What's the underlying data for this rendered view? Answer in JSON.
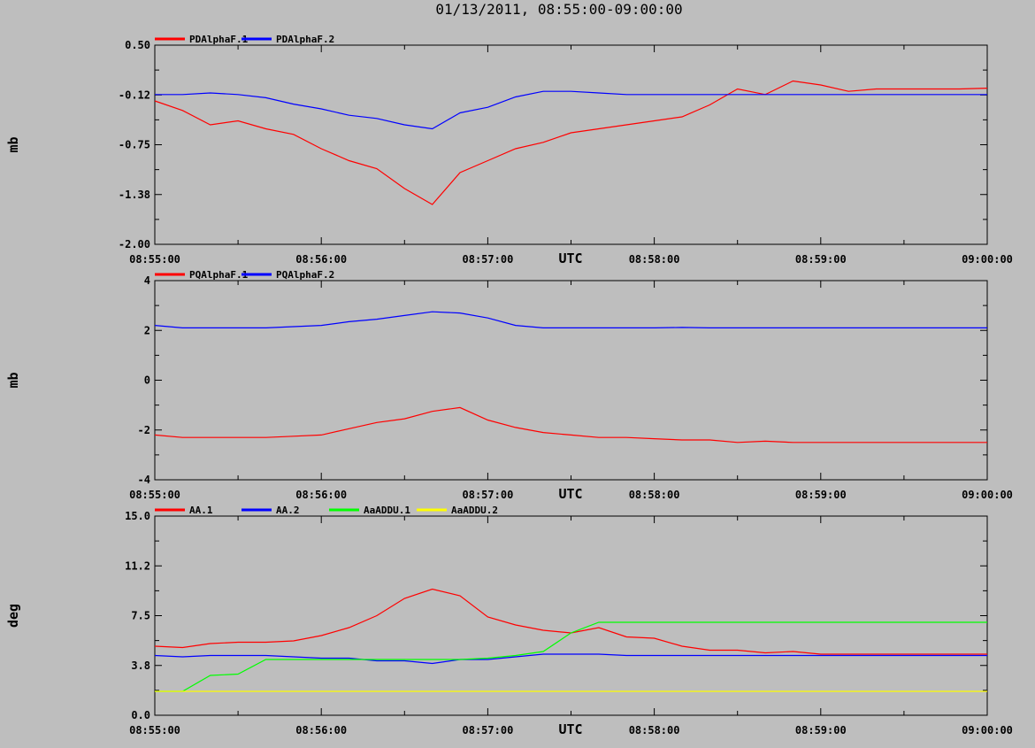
{
  "title": "01/13/2011, 08:55:00-09:00:00",
  "x_ticks": [
    "08:55:00",
    "08:56:00",
    "08:57:00",
    "08:58:00",
    "08:59:00",
    "09:00:00"
  ],
  "x_unit": "UTC",
  "chart_data": [
    {
      "type": "line",
      "ylabel": "mb",
      "ylim": [
        -2.0,
        0.5
      ],
      "y_ticks": [
        "0.50",
        "-0.12",
        "-0.75",
        "-1.38",
        "-2.00"
      ],
      "x": [
        0,
        10,
        20,
        30,
        40,
        50,
        60,
        70,
        80,
        90,
        100,
        110,
        120,
        130,
        140,
        150,
        160,
        170,
        180,
        190,
        200,
        210,
        220,
        230,
        240,
        250,
        260,
        270,
        280,
        290,
        300
      ],
      "x_unit_note": "seconds after 08:55:00",
      "series": [
        {
          "name": "PDAlphaF.1",
          "color": "#ff0000",
          "values": [
            -0.2,
            -0.32,
            -0.5,
            -0.45,
            -0.55,
            -0.62,
            -0.8,
            -0.95,
            -1.05,
            -1.3,
            -1.5,
            -1.1,
            -0.95,
            -0.8,
            -0.72,
            -0.6,
            -0.55,
            -0.5,
            -0.45,
            -0.4,
            -0.25,
            -0.05,
            -0.12,
            0.05,
            0.0,
            -0.08,
            -0.05,
            -0.05,
            -0.05,
            -0.05,
            -0.04
          ]
        },
        {
          "name": "PDAlphaF.2",
          "color": "#0000ff",
          "values": [
            -0.12,
            -0.12,
            -0.1,
            -0.12,
            -0.16,
            -0.24,
            -0.3,
            -0.38,
            -0.42,
            -0.5,
            -0.55,
            -0.35,
            -0.28,
            -0.15,
            -0.08,
            -0.08,
            -0.1,
            -0.12,
            -0.12,
            -0.12,
            -0.12,
            -0.12,
            -0.12,
            -0.12,
            -0.12,
            -0.12,
            -0.12,
            -0.12,
            -0.12,
            -0.12,
            -0.12
          ]
        }
      ]
    },
    {
      "type": "line",
      "ylabel": "mb",
      "ylim": [
        -4,
        4
      ],
      "y_ticks": [
        "4",
        "2",
        "0",
        "-2",
        "-4"
      ],
      "x": [
        0,
        10,
        20,
        30,
        40,
        50,
        60,
        70,
        80,
        90,
        100,
        110,
        120,
        130,
        140,
        150,
        160,
        170,
        180,
        190,
        200,
        210,
        220,
        230,
        240,
        250,
        260,
        270,
        280,
        290,
        300
      ],
      "series": [
        {
          "name": "PQAlphaF.1",
          "color": "#ff0000",
          "values": [
            -2.2,
            -2.3,
            -2.3,
            -2.3,
            -2.3,
            -2.25,
            -2.2,
            -1.95,
            -1.7,
            -1.55,
            -1.25,
            -1.1,
            -1.6,
            -1.9,
            -2.1,
            -2.2,
            -2.3,
            -2.3,
            -2.35,
            -2.4,
            -2.4,
            -2.5,
            -2.45,
            -2.5,
            -2.5,
            -2.5,
            -2.5,
            -2.5,
            -2.5,
            -2.5,
            -2.5
          ]
        },
        {
          "name": "PQAlphaF.2",
          "color": "#0000ff",
          "values": [
            2.2,
            2.1,
            2.1,
            2.1,
            2.1,
            2.15,
            2.2,
            2.35,
            2.45,
            2.6,
            2.75,
            2.7,
            2.5,
            2.2,
            2.1,
            2.1,
            2.1,
            2.1,
            2.1,
            2.12,
            2.1,
            2.1,
            2.1,
            2.1,
            2.1,
            2.1,
            2.1,
            2.1,
            2.1,
            2.1,
            2.1
          ]
        }
      ]
    },
    {
      "type": "line",
      "ylabel": "deg",
      "ylim": [
        0.0,
        15.0
      ],
      "y_ticks": [
        "15.0",
        "11.2",
        "7.5",
        "3.8",
        "0.0"
      ],
      "x": [
        0,
        10,
        20,
        30,
        40,
        50,
        60,
        70,
        80,
        90,
        100,
        110,
        120,
        130,
        140,
        150,
        160,
        170,
        180,
        190,
        200,
        210,
        220,
        230,
        240,
        250,
        260,
        270,
        280,
        290,
        300
      ],
      "series": [
        {
          "name": "AA.1",
          "color": "#ff0000",
          "values": [
            5.2,
            5.1,
            5.4,
            5.5,
            5.5,
            5.6,
            6.0,
            6.6,
            7.5,
            8.8,
            9.5,
            9.0,
            7.4,
            6.8,
            6.4,
            6.2,
            6.6,
            5.9,
            5.8,
            5.2,
            4.9,
            4.9,
            4.7,
            4.8,
            4.6,
            4.6,
            4.6,
            4.6,
            4.6,
            4.6,
            4.6
          ]
        },
        {
          "name": "AA.2",
          "color": "#0000ff",
          "values": [
            4.5,
            4.4,
            4.5,
            4.5,
            4.5,
            4.4,
            4.3,
            4.3,
            4.1,
            4.1,
            3.9,
            4.2,
            4.2,
            4.4,
            4.6,
            4.6,
            4.6,
            4.5,
            4.5,
            4.5,
            4.5,
            4.5,
            4.5,
            4.5,
            4.5,
            4.5,
            4.5,
            4.5,
            4.5,
            4.5,
            4.5
          ]
        },
        {
          "name": "AaADDU.1",
          "color": "#00ff00",
          "values": [
            1.8,
            1.8,
            3.0,
            3.1,
            4.2,
            4.2,
            4.2,
            4.2,
            4.2,
            4.2,
            4.2,
            4.2,
            4.3,
            4.5,
            4.8,
            6.2,
            7.0,
            7.0,
            7.0,
            7.0,
            7.0,
            7.0,
            7.0,
            7.0,
            7.0,
            7.0,
            7.0,
            7.0,
            7.0,
            7.0,
            7.0
          ]
        },
        {
          "name": "AaADDU.2",
          "color": "#ffff00",
          "values": [
            1.8,
            1.8,
            1.8,
            1.8,
            1.8,
            1.8,
            1.8,
            1.8,
            1.8,
            1.8,
            1.8,
            1.8,
            1.8,
            1.8,
            1.8,
            1.8,
            1.8,
            1.8,
            1.8,
            1.8,
            1.8,
            1.8,
            1.8,
            1.8,
            1.8,
            1.8,
            1.8,
            1.8,
            1.8,
            1.8,
            1.8
          ]
        }
      ]
    }
  ]
}
